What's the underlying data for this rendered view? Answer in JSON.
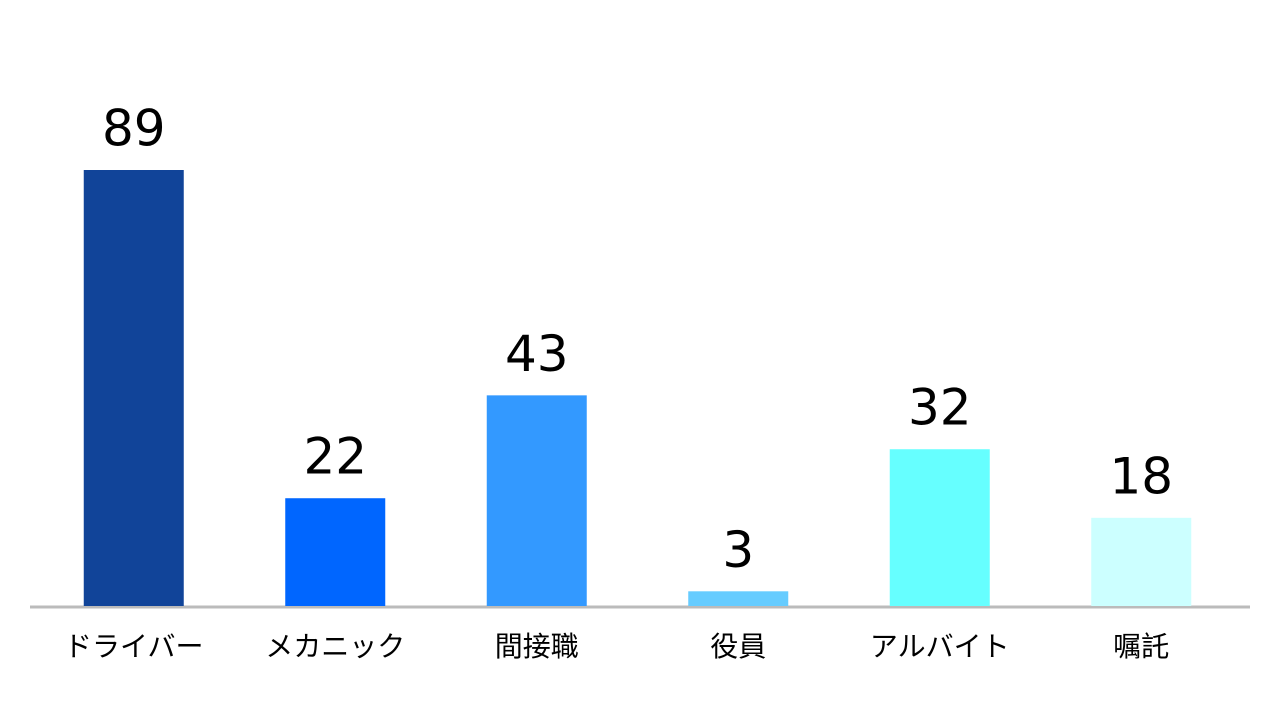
{
  "chart_data": {
    "type": "bar",
    "categories": [
      "ドライバー",
      "メカニック",
      "間接職",
      "役員",
      "アルバイト",
      "嘱託"
    ],
    "values": [
      89,
      22,
      43,
      3,
      32,
      18
    ],
    "colors": [
      "#114499",
      "#0066ff",
      "#3399ff",
      "#66ccff",
      "#66ffff",
      "#ccffff"
    ]
  }
}
